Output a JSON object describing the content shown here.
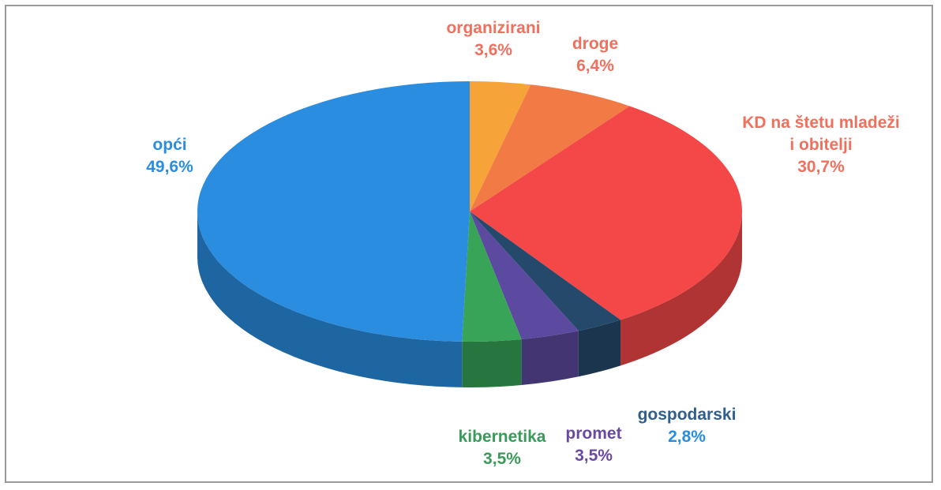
{
  "chart_data": {
    "type": "pie",
    "categories": [
      "organizirani",
      "droge",
      "KD na štetu mladeži i obitelji",
      "gospodarski",
      "promet",
      "kibernetika",
      "opći"
    ],
    "values": [
      3.6,
      6.4,
      30.7,
      2.8,
      3.5,
      3.5,
      49.6
    ],
    "value_labels": [
      "3,6%",
      "6,4%",
      "30,7%",
      "2,8%",
      "3,5%",
      "3,5%",
      "49,6%"
    ],
    "colors": [
      "#f6a43a",
      "#f27a45",
      "#f44848",
      "#24496b",
      "#5b4a9f",
      "#38a457",
      "#2a8de0"
    ],
    "label_colors": [
      "#f0705e",
      "#f0705e",
      "#f0705e",
      "#2f5f8e",
      "#6a4aa0",
      "#3a9a5a",
      "#2a8de0"
    ]
  }
}
